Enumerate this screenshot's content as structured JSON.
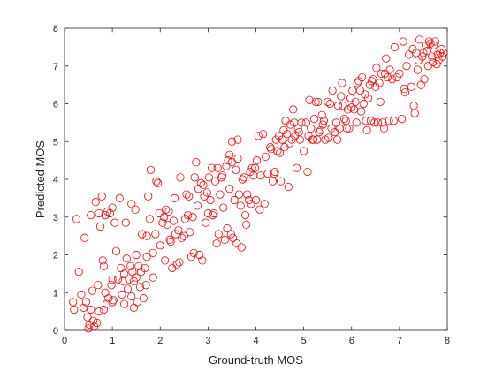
{
  "chart_data": {
    "type": "scatter",
    "title": "",
    "xlabel": "Ground-truth MOS",
    "ylabel": "Predicted MOS",
    "xlim": [
      0,
      8
    ],
    "ylim": [
      0,
      8
    ],
    "xticks": [
      0,
      1,
      2,
      3,
      4,
      5,
      6,
      7,
      8
    ],
    "yticks": [
      0,
      1,
      2,
      3,
      4,
      5,
      6,
      7,
      8
    ],
    "grid": false,
    "box": true,
    "marker": "open-circle",
    "marker_color": "#ff0000",
    "axis_color": "#262626",
    "series": [
      {
        "points": [
          [
            0.18,
            0.75
          ],
          [
            0.2,
            0.55
          ],
          [
            0.25,
            2.95
          ],
          [
            0.3,
            1.55
          ],
          [
            0.35,
            0.95
          ],
          [
            0.4,
            0.6
          ],
          [
            0.45,
            0.75
          ],
          [
            0.42,
            2.45
          ],
          [
            0.48,
            0.35
          ],
          [
            0.5,
            0.05
          ],
          [
            0.52,
            0.15
          ],
          [
            0.55,
            0.55
          ],
          [
            0.55,
            3.05
          ],
          [
            0.58,
            1.05
          ],
          [
            0.6,
            0.25
          ],
          [
            0.62,
            0.1
          ],
          [
            0.65,
            3.4
          ],
          [
            0.68,
            0.2
          ],
          [
            0.7,
            1.2
          ],
          [
            0.72,
            0.5
          ],
          [
            0.72,
            3.1
          ],
          [
            0.75,
            2.75
          ],
          [
            0.78,
            3.55
          ],
          [
            0.8,
            1.85
          ],
          [
            0.82,
            1.7
          ],
          [
            0.82,
            0.55
          ],
          [
            0.85,
            1.0
          ],
          [
            0.85,
            3.05
          ],
          [
            0.88,
            0.7
          ],
          [
            0.9,
            3.15
          ],
          [
            0.92,
            0.85
          ],
          [
            0.95,
            3.1
          ],
          [
            0.98,
            1.2
          ],
          [
            1.0,
            0.75
          ],
          [
            1.0,
            3.25
          ],
          [
            1.0,
            1.35
          ],
          [
            1.02,
            0.8
          ],
          [
            1.05,
            2.85
          ],
          [
            1.08,
            2.1
          ],
          [
            1.12,
            1.35
          ],
          [
            1.15,
            3.5
          ],
          [
            1.18,
            1.65
          ],
          [
            1.2,
            0.95
          ],
          [
            1.22,
            1.3
          ],
          [
            1.25,
            0.7
          ],
          [
            1.25,
            1.5
          ],
          [
            1.28,
            2.85
          ],
          [
            1.3,
            1.9
          ],
          [
            1.32,
            1.1
          ],
          [
            1.35,
            1.35
          ],
          [
            1.38,
            1.7
          ],
          [
            1.4,
            0.9
          ],
          [
            1.4,
            3.35
          ],
          [
            1.42,
            1.55
          ],
          [
            1.45,
            0.6
          ],
          [
            1.45,
            1.3
          ],
          [
            1.48,
            3.2
          ],
          [
            1.5,
            2.0
          ],
          [
            1.5,
            1.4
          ],
          [
            1.52,
            0.75
          ],
          [
            1.55,
            1.7
          ],
          [
            1.58,
            1.15
          ],
          [
            1.6,
            1.55
          ],
          [
            1.62,
            2.55
          ],
          [
            1.65,
            0.85
          ],
          [
            1.68,
            1.65
          ],
          [
            1.7,
            1.2
          ],
          [
            1.72,
            1.95
          ],
          [
            1.72,
            2.5
          ],
          [
            1.75,
            3.55
          ],
          [
            1.78,
            2.95
          ],
          [
            1.8,
            4.25
          ],
          [
            1.85,
            2.05
          ],
          [
            1.85,
            1.4
          ],
          [
            1.9,
            2.55
          ],
          [
            1.92,
            3.95
          ],
          [
            1.95,
            3.9
          ],
          [
            1.98,
            3.1
          ],
          [
            2.0,
            2.25
          ],
          [
            2.05,
            2.85
          ],
          [
            2.08,
            3.0
          ],
          [
            2.1,
            1.85
          ],
          [
            2.12,
            3.2
          ],
          [
            2.15,
            2.8
          ],
          [
            2.18,
            3.15
          ],
          [
            2.2,
            2.4
          ],
          [
            2.22,
            2.35
          ],
          [
            2.25,
            1.65
          ],
          [
            2.28,
            2.9
          ],
          [
            2.3,
            3.5
          ],
          [
            2.32,
            2.55
          ],
          [
            2.35,
            1.75
          ],
          [
            2.38,
            2.65
          ],
          [
            2.4,
            1.8
          ],
          [
            2.42,
            4.05
          ],
          [
            2.45,
            2.45
          ],
          [
            2.5,
            2.5
          ],
          [
            2.52,
            2.95
          ],
          [
            2.55,
            3.6
          ],
          [
            2.58,
            3.05
          ],
          [
            2.6,
            3.55
          ],
          [
            2.62,
            2.6
          ],
          [
            2.65,
            1.95
          ],
          [
            2.68,
            3.0
          ],
          [
            2.7,
            2.05
          ],
          [
            2.72,
            4.05
          ],
          [
            2.75,
            4.45
          ],
          [
            2.78,
            3.3
          ],
          [
            2.8,
            3.75
          ],
          [
            2.82,
            2.0
          ],
          [
            2.85,
            3.9
          ],
          [
            2.88,
            1.85
          ],
          [
            2.9,
            3.85
          ],
          [
            2.92,
            3.55
          ],
          [
            2.95,
            2.85
          ],
          [
            2.98,
            3.65
          ],
          [
            3.0,
            3.1
          ],
          [
            3.02,
            4.05
          ],
          [
            3.05,
            3.45
          ],
          [
            3.08,
            4.3
          ],
          [
            3.1,
            3.05
          ],
          [
            3.12,
            3.1
          ],
          [
            3.15,
            3.95
          ],
          [
            3.18,
            2.3
          ],
          [
            3.2,
            4.3
          ],
          [
            3.22,
            2.55
          ],
          [
            3.25,
            3.6
          ],
          [
            3.28,
            4.05
          ],
          [
            3.3,
            4.1
          ],
          [
            3.32,
            3.25
          ],
          [
            3.35,
            2.4
          ],
          [
            3.38,
            4.35
          ],
          [
            3.4,
            2.7
          ],
          [
            3.42,
            4.5
          ],
          [
            3.45,
            4.65
          ],
          [
            3.45,
            3.75
          ],
          [
            3.48,
            2.55
          ],
          [
            3.5,
            5.0
          ],
          [
            3.5,
            4.45
          ],
          [
            3.52,
            2.45
          ],
          [
            3.55,
            3.45
          ],
          [
            3.58,
            4.25
          ],
          [
            3.6,
            2.3
          ],
          [
            3.62,
            4.55
          ],
          [
            3.62,
            5.05
          ],
          [
            3.65,
            3.6
          ],
          [
            3.68,
            3.3
          ],
          [
            3.7,
            2.2
          ],
          [
            3.72,
            4.0
          ],
          [
            3.75,
            4.05
          ],
          [
            3.78,
            3.05
          ],
          [
            3.8,
            2.8
          ],
          [
            3.82,
            3.6
          ],
          [
            3.85,
            3.45
          ],
          [
            3.88,
            4.2
          ],
          [
            3.9,
            3.35
          ],
          [
            3.92,
            4.3
          ],
          [
            3.95,
            4.1
          ],
          [
            3.98,
            4.3
          ],
          [
            4.0,
            3.45
          ],
          [
            4.02,
            4.5
          ],
          [
            4.05,
            5.15
          ],
          [
            4.08,
            3.2
          ],
          [
            4.1,
            4.1
          ],
          [
            4.15,
            5.2
          ],
          [
            4.18,
            3.35
          ],
          [
            4.2,
            4.6
          ],
          [
            4.25,
            4.15
          ],
          [
            4.3,
            4.85
          ],
          [
            4.32,
            4.8
          ],
          [
            4.35,
            3.95
          ],
          [
            4.38,
            4.15
          ],
          [
            4.4,
            4.2
          ],
          [
            4.42,
            5.05
          ],
          [
            4.45,
            4.75
          ],
          [
            4.48,
            5.15
          ],
          [
            4.5,
            4.7
          ],
          [
            4.52,
            3.95
          ],
          [
            4.55,
            5.05
          ],
          [
            4.58,
            5.3
          ],
          [
            4.6,
            4.85
          ],
          [
            4.62,
            5.55
          ],
          [
            4.65,
            5.2
          ],
          [
            4.68,
            3.8
          ],
          [
            4.7,
            4.95
          ],
          [
            4.72,
            5.45
          ],
          [
            4.75,
            5.05
          ],
          [
            4.78,
            5.85
          ],
          [
            4.8,
            5.5
          ],
          [
            4.82,
            5.15
          ],
          [
            4.85,
            4.3
          ],
          [
            4.88,
            5.35
          ],
          [
            4.9,
            5.25
          ],
          [
            4.92,
            5.05
          ],
          [
            4.95,
            5.5
          ],
          [
            5.0,
            4.75
          ],
          [
            5.05,
            5.5
          ],
          [
            5.08,
            4.2
          ],
          [
            5.1,
            5.15
          ],
          [
            5.12,
            6.1
          ],
          [
            5.15,
            5.35
          ],
          [
            5.18,
            5.05
          ],
          [
            5.2,
            5.05
          ],
          [
            5.22,
            5.6
          ],
          [
            5.25,
            6.05
          ],
          [
            5.28,
            5.05
          ],
          [
            5.3,
            6.05
          ],
          [
            5.32,
            5.25
          ],
          [
            5.35,
            5.3
          ],
          [
            5.38,
            5.7
          ],
          [
            5.4,
            5.45
          ],
          [
            5.42,
            5.55
          ],
          [
            5.45,
            5.05
          ],
          [
            5.5,
            6.05
          ],
          [
            5.52,
            5.1
          ],
          [
            5.55,
            6.0
          ],
          [
            5.58,
            5.35
          ],
          [
            5.6,
            6.35
          ],
          [
            5.65,
            5.25
          ],
          [
            5.68,
            5.5
          ],
          [
            5.7,
            5.05
          ],
          [
            5.72,
            5.95
          ],
          [
            5.75,
            5.35
          ],
          [
            5.78,
            6.2
          ],
          [
            5.8,
            6.55
          ],
          [
            5.82,
            5.95
          ],
          [
            5.85,
            5.6
          ],
          [
            5.88,
            5.55
          ],
          [
            5.9,
            5.35
          ],
          [
            5.92,
            5.85
          ],
          [
            5.95,
            5.35
          ],
          [
            5.98,
            6.15
          ],
          [
            6.0,
            5.9
          ],
          [
            6.02,
            6.35
          ],
          [
            6.05,
            5.85
          ],
          [
            6.08,
            6.05
          ],
          [
            6.1,
            5.5
          ],
          [
            6.12,
            6.55
          ],
          [
            6.15,
            6.6
          ],
          [
            6.18,
            6.35
          ],
          [
            6.2,
            5.8
          ],
          [
            6.22,
            6.7
          ],
          [
            6.25,
            6.0
          ],
          [
            6.28,
            6.25
          ],
          [
            6.3,
            5.55
          ],
          [
            6.32,
            5.3
          ],
          [
            6.35,
            6.15
          ],
          [
            6.38,
            6.5
          ],
          [
            6.4,
            5.55
          ],
          [
            6.42,
            6.6
          ],
          [
            6.45,
            6.65
          ],
          [
            6.48,
            5.5
          ],
          [
            6.5,
            6.45
          ],
          [
            6.52,
            6.95
          ],
          [
            6.55,
            5.5
          ],
          [
            6.58,
            6.55
          ],
          [
            6.6,
            6.05
          ],
          [
            6.62,
            6.8
          ],
          [
            6.65,
            5.5
          ],
          [
            6.68,
            5.35
          ],
          [
            6.7,
            6.8
          ],
          [
            6.72,
            7.2
          ],
          [
            6.75,
            6.7
          ],
          [
            6.78,
            5.55
          ],
          [
            6.8,
            6.9
          ],
          [
            6.85,
            6.65
          ],
          [
            6.88,
            5.55
          ],
          [
            6.9,
            7.5
          ],
          [
            6.95,
            6.7
          ],
          [
            7.0,
            6.8
          ],
          [
            7.05,
            5.6
          ],
          [
            7.08,
            7.65
          ],
          [
            7.1,
            6.4
          ],
          [
            7.12,
            6.3
          ],
          [
            7.15,
            7.0
          ],
          [
            7.2,
            7.3
          ],
          [
            7.25,
            6.45
          ],
          [
            7.28,
            7.45
          ],
          [
            7.3,
            5.95
          ],
          [
            7.32,
            5.75
          ],
          [
            7.35,
            7.35
          ],
          [
            7.38,
            6.9
          ],
          [
            7.4,
            7.15
          ],
          [
            7.42,
            7.7
          ],
          [
            7.45,
            6.5
          ],
          [
            7.48,
            7.25
          ],
          [
            7.5,
            7.35
          ],
          [
            7.52,
            6.65
          ],
          [
            7.55,
            7.55
          ],
          [
            7.58,
            7.4
          ],
          [
            7.6,
            7.0
          ],
          [
            7.62,
            7.65
          ],
          [
            7.65,
            7.6
          ],
          [
            7.68,
            7.25
          ],
          [
            7.7,
            7.1
          ],
          [
            7.72,
            7.55
          ],
          [
            7.75,
            7.65
          ],
          [
            7.78,
            7.05
          ],
          [
            7.8,
            7.3
          ],
          [
            7.82,
            7.15
          ],
          [
            7.85,
            7.35
          ],
          [
            7.88,
            7.45
          ],
          [
            7.9,
            7.25
          ],
          [
            7.92,
            7.35
          ]
        ]
      }
    ]
  }
}
